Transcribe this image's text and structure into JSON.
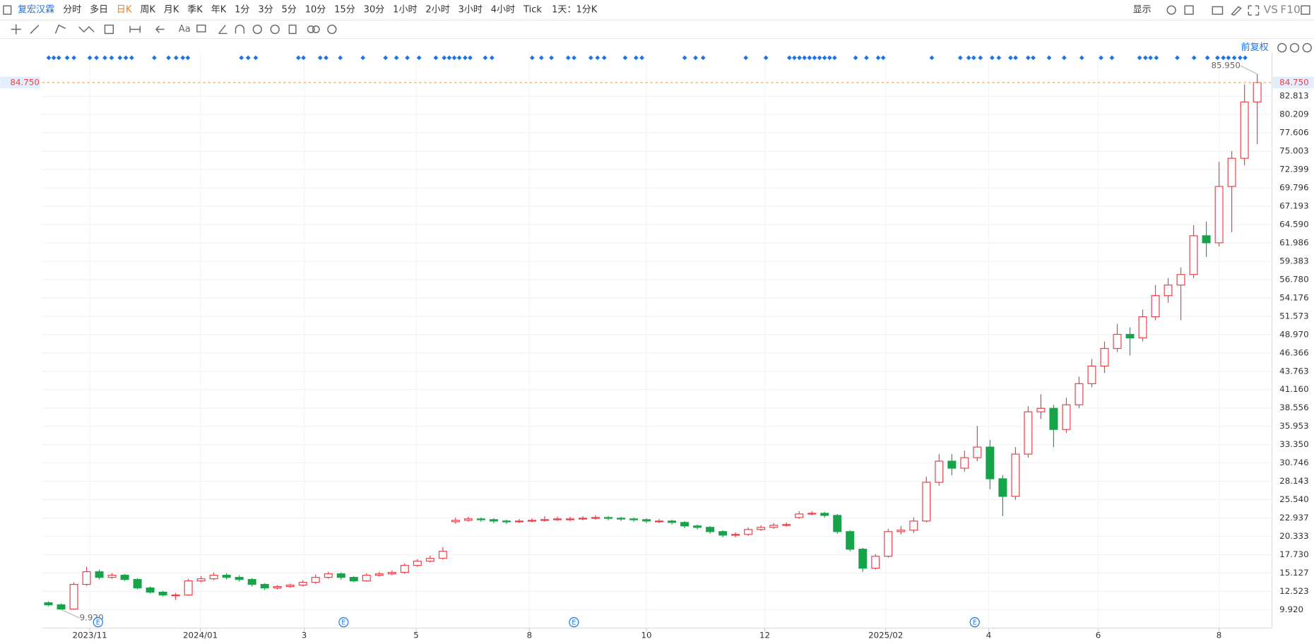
{
  "toolbar": {
    "symbol": "复宏汉霖",
    "periods": [
      "分时",
      "多日",
      "日K",
      "周K",
      "月K",
      "季K",
      "年K",
      "1分",
      "3分",
      "5分",
      "10分",
      "15分",
      "30分",
      "1小时",
      "2小时",
      "3小时",
      "4小时",
      "Tick"
    ],
    "active_period": 2,
    "period_setting": "1天：1分K",
    "display": "显示",
    "compare": "VS",
    "f10": "F10"
  },
  "chart_data": {
    "type": "candlestick",
    "adjust": "前复权",
    "open": [
      10.9,
      10.6,
      10.0,
      13.5,
      15.3,
      14.5,
      14.8,
      14.2,
      13.0,
      12.4,
      12.0,
      12.0,
      14.0,
      14.3,
      14.8,
      14.5,
      14.2,
      13.5,
      13.0,
      13.2,
      13.4,
      13.8,
      14.5,
      15.0,
      14.5,
      14.0,
      14.8,
      15.0,
      15.2,
      16.2,
      16.8,
      17.2,
      22.4,
      22.6,
      22.8,
      22.7,
      22.5,
      22.4,
      22.5,
      22.6,
      22.7,
      22.8,
      22.8,
      22.9,
      23.0,
      22.9,
      22.8,
      22.7,
      22.5,
      22.5,
      22.3,
      21.8,
      21.6,
      21.0,
      20.5,
      20.6,
      21.3,
      21.6,
      21.9,
      23.0,
      23.5,
      23.6,
      23.3,
      21.0,
      18.5,
      15.8,
      17.5,
      21.0,
      21.2,
      22.5,
      28.0,
      31.0,
      30.0,
      31.5,
      33.0,
      28.5,
      26.0,
      32.0,
      38.0,
      38.5,
      35.5,
      39.0,
      42.0,
      44.5,
      47.0,
      49.0,
      48.5,
      51.5,
      54.5,
      56.0,
      57.5,
      63.0,
      62.0,
      70.0,
      74.0,
      82.0
    ],
    "high": [
      11.1,
      10.8,
      13.8,
      16.0,
      15.6,
      15.1,
      15.0,
      14.4,
      13.2,
      12.6,
      12.3,
      14.3,
      14.7,
      15.2,
      15.1,
      14.8,
      14.4,
      13.7,
      13.4,
      13.6,
      14.1,
      14.9,
      15.3,
      15.2,
      14.7,
      15.1,
      15.3,
      15.5,
      16.5,
      17.1,
      17.6,
      18.8,
      23.0,
      23.1,
      23.0,
      22.9,
      22.7,
      22.8,
      22.9,
      23.2,
      23.1,
      23.1,
      23.2,
      23.3,
      23.2,
      23.1,
      23.0,
      22.9,
      22.8,
      22.7,
      22.5,
      22.0,
      21.8,
      21.2,
      20.9,
      21.6,
      21.9,
      22.2,
      22.3,
      23.9,
      23.9,
      23.8,
      23.5,
      21.2,
      18.7,
      17.8,
      21.4,
      21.8,
      23.0,
      28.8,
      32.0,
      32.0,
      32.5,
      36.0,
      34.0,
      29.0,
      33.0,
      38.8,
      40.5,
      39.0,
      40.0,
      43.0,
      45.5,
      48.0,
      50.5,
      50.0,
      52.5,
      56.0,
      57.0,
      58.5,
      64.5,
      65.0,
      73.5,
      75.0,
      84.5,
      85.95
    ],
    "low": [
      10.4,
      9.92,
      10.0,
      13.3,
      14.2,
      14.3,
      14.0,
      12.8,
      12.2,
      11.8,
      11.3,
      11.9,
      13.8,
      14.1,
      14.2,
      13.9,
      13.2,
      12.7,
      12.8,
      13.0,
      13.2,
      13.6,
      14.3,
      14.2,
      13.8,
      13.9,
      14.6,
      14.8,
      15.0,
      16.0,
      16.6,
      17.0,
      22.1,
      22.4,
      22.4,
      22.2,
      22.1,
      22.2,
      22.3,
      22.4,
      22.5,
      22.5,
      22.6,
      22.7,
      22.6,
      22.5,
      22.4,
      22.2,
      22.2,
      22.0,
      21.5,
      21.3,
      20.7,
      20.2,
      20.2,
      20.4,
      21.1,
      21.4,
      21.7,
      22.8,
      23.3,
      23.0,
      20.7,
      18.2,
      15.3,
      15.6,
      17.3,
      20.6,
      20.8,
      22.3,
      27.5,
      29.0,
      29.5,
      31.0,
      27.0,
      23.2,
      25.5,
      31.5,
      37.0,
      33.0,
      35.0,
      38.5,
      41.5,
      43.5,
      46.5,
      46.0,
      48.0,
      51.0,
      53.5,
      51.0,
      57.0,
      60.0,
      61.5,
      63.5,
      73.0,
      76.0
    ],
    "close": [
      10.6,
      10.0,
      13.5,
      15.3,
      14.5,
      14.8,
      14.2,
      13.0,
      12.4,
      12.0,
      12.0,
      14.0,
      14.3,
      14.8,
      14.5,
      14.2,
      13.5,
      13.0,
      13.2,
      13.4,
      13.8,
      14.5,
      15.0,
      14.5,
      14.0,
      14.8,
      15.0,
      15.2,
      16.2,
      16.8,
      17.2,
      18.2,
      22.6,
      22.8,
      22.7,
      22.5,
      22.4,
      22.5,
      22.6,
      22.7,
      22.8,
      22.8,
      22.9,
      23.0,
      22.9,
      22.8,
      22.7,
      22.5,
      22.5,
      22.3,
      21.8,
      21.6,
      21.0,
      20.5,
      20.6,
      21.3,
      21.6,
      21.9,
      22.0,
      23.5,
      23.6,
      23.3,
      21.0,
      18.5,
      15.8,
      17.5,
      21.0,
      21.2,
      22.5,
      28.0,
      31.0,
      30.0,
      31.5,
      33.0,
      28.5,
      26.0,
      32.0,
      38.0,
      38.5,
      35.5,
      39.0,
      42.0,
      44.5,
      47.0,
      49.0,
      48.5,
      51.5,
      54.5,
      56.0,
      57.5,
      63.0,
      62.0,
      70.0,
      74.0,
      82.0,
      84.75
    ],
    "up_color": "#e8414a",
    "down_color": "#17a34a",
    "xlim": [
      -0.5,
      95.5
    ],
    "xticks": [
      {
        "value": 3.25,
        "label": "2023/11"
      },
      {
        "value": 11.94,
        "label": "2024/01"
      },
      {
        "value": 20.1,
        "label": "3"
      },
      {
        "value": 28.9,
        "label": "5"
      },
      {
        "value": 37.8,
        "label": "8"
      },
      {
        "value": 47.0,
        "label": "10"
      },
      {
        "value": 56.3,
        "label": "12"
      },
      {
        "value": 65.8,
        "label": "2025/02"
      },
      {
        "value": 73.9,
        "label": "4"
      },
      {
        "value": 82.5,
        "label": "6"
      },
      {
        "value": 92.0,
        "label": "8"
      }
    ],
    "ylim": [
      7.3,
      89.1
    ],
    "yticks": [
      {
        "value": 9.92,
        "label": "9.920"
      },
      {
        "value": 12.523,
        "label": "12.523"
      },
      {
        "value": 15.127,
        "label": "15.127"
      },
      {
        "value": 17.73,
        "label": "17.730"
      },
      {
        "value": 20.333,
        "label": "20.333"
      },
      {
        "value": 22.937,
        "label": "22.937"
      },
      {
        "value": 25.54,
        "label": "25.540"
      },
      {
        "value": 28.143,
        "label": "28.143"
      },
      {
        "value": 30.746,
        "label": "30.746"
      },
      {
        "value": 33.35,
        "label": "33.350"
      },
      {
        "value": 35.953,
        "label": "35.953"
      },
      {
        "value": 38.556,
        "label": "38.556"
      },
      {
        "value": 41.16,
        "label": "41.160"
      },
      {
        "value": 43.763,
        "label": "43.763"
      },
      {
        "value": 46.366,
        "label": "46.366"
      },
      {
        "value": 48.97,
        "label": "48.970"
      },
      {
        "value": 51.573,
        "label": "51.573"
      },
      {
        "value": 54.176,
        "label": "54.176"
      },
      {
        "value": 56.78,
        "label": "56.780"
      },
      {
        "value": 59.383,
        "label": "59.383"
      },
      {
        "value": 61.986,
        "label": "61.986"
      },
      {
        "value": 64.59,
        "label": "64.590"
      },
      {
        "value": 67.193,
        "label": "67.193"
      },
      {
        "value": 69.796,
        "label": "69.796"
      },
      {
        "value": 72.399,
        "label": "72.399"
      },
      {
        "value": 75.003,
        "label": "75.003"
      },
      {
        "value": 77.606,
        "label": "77.606"
      },
      {
        "value": 80.209,
        "label": "80.209"
      },
      {
        "value": 82.813,
        "label": "82.813"
      }
    ],
    "grid": true,
    "last_price": {
      "value": 84.75,
      "label": "84.750"
    },
    "annotations": [
      {
        "x": 95,
        "value": 85.95,
        "label": "85.950"
      },
      {
        "x": 1,
        "value": 9.92,
        "label": "9.920"
      }
    ],
    "events": [
      {
        "x": 3.9,
        "label": "E"
      },
      {
        "x": 23.2,
        "label": "E"
      },
      {
        "x": 41.3,
        "label": "E"
      },
      {
        "x": 72.8,
        "label": "E"
      }
    ]
  }
}
